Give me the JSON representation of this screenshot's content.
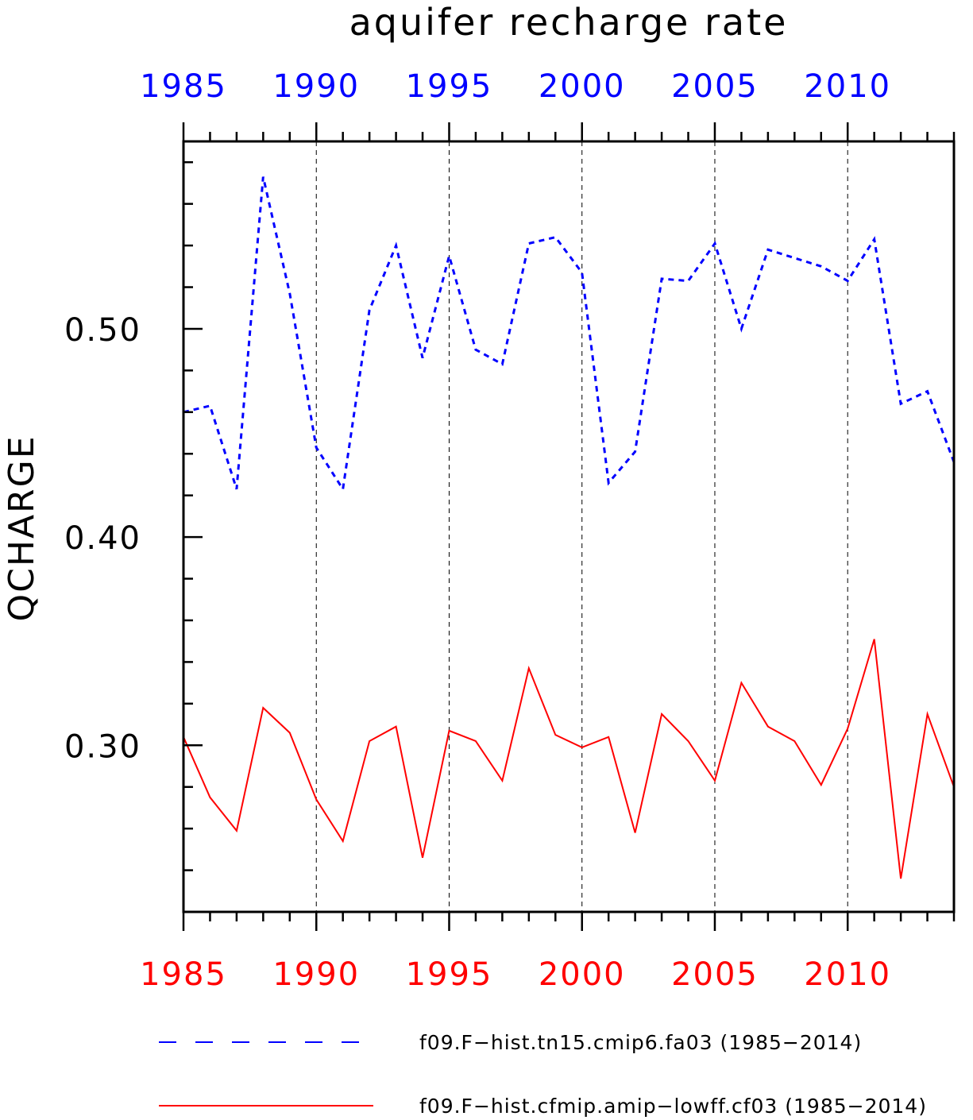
{
  "chart_data": {
    "type": "line",
    "title": "aquifer recharge rate",
    "ylabel": "QCHARGE",
    "xlabel": "",
    "xlim": [
      1985,
      2014
    ],
    "ylim": [
      0.22,
      0.59
    ],
    "y_ticks": [
      "0.30",
      "0.40",
      "0.50"
    ],
    "y_tick_values": [
      0.3,
      0.4,
      0.5
    ],
    "y_minor_step": 0.02,
    "x_ticks_top": [
      "1985",
      "1990",
      "1995",
      "2000",
      "2005",
      "2010"
    ],
    "x_ticks_bottom": [
      "1985",
      "1990",
      "1995",
      "2000",
      "2005",
      "2010"
    ],
    "x_tick_values": [
      1985,
      1990,
      1995,
      2000,
      2005,
      2010
    ],
    "x_top_color": "#0000ff",
    "x_bottom_color": "#ff0000",
    "grid": "vertical dashed at major x ticks",
    "legend_position": "bottom",
    "x": [
      1985,
      1986,
      1987,
      1988,
      1989,
      1990,
      1991,
      1992,
      1993,
      1994,
      1995,
      1996,
      1997,
      1998,
      1999,
      2000,
      2001,
      2002,
      2003,
      2004,
      2005,
      2006,
      2007,
      2008,
      2009,
      2010,
      2011,
      2012,
      2013,
      2014
    ],
    "series": [
      {
        "name": "f09.F−hist.tn15.cmip6.fa03 (1985−2014)",
        "color": "#0000ff",
        "style": "dashed",
        "values": [
          0.46,
          0.463,
          0.423,
          0.573,
          0.517,
          0.443,
          0.423,
          0.509,
          0.54,
          0.486,
          0.535,
          0.49,
          0.483,
          0.541,
          0.544,
          0.527,
          0.426,
          0.441,
          0.524,
          0.523,
          0.541,
          0.5,
          0.538,
          0.534,
          0.53,
          0.523,
          0.543,
          0.464,
          0.47,
          0.436
        ]
      },
      {
        "name": "f09.F−hist.cfmip.amip−lowff.cf03 (1985−2014)",
        "color": "#ff0000",
        "style": "solid",
        "values": [
          0.304,
          0.275,
          0.259,
          0.318,
          0.306,
          0.274,
          0.254,
          0.302,
          0.309,
          0.246,
          0.307,
          0.302,
          0.283,
          0.337,
          0.305,
          0.299,
          0.304,
          0.258,
          0.315,
          0.302,
          0.283,
          0.33,
          0.309,
          0.302,
          0.281,
          0.308,
          0.351,
          0.236,
          0.315,
          0.28
        ]
      }
    ]
  }
}
